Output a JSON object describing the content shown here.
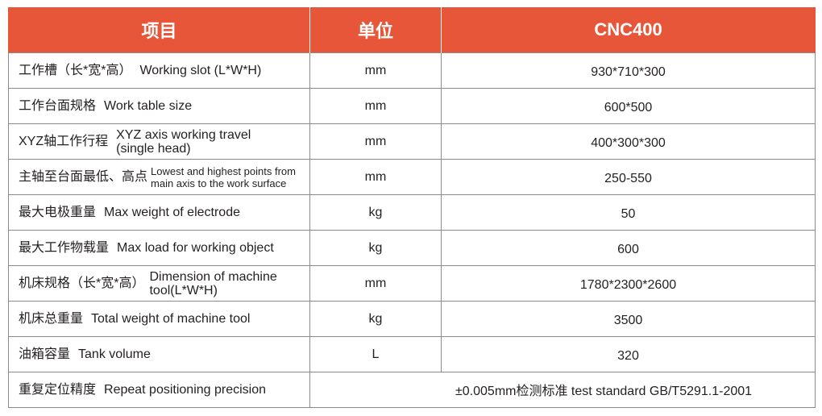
{
  "header": {
    "item": "项目",
    "unit": "单位",
    "model": "CNC400"
  },
  "rows": [
    {
      "cn": "工作槽（长*宽*高）",
      "en": "Working slot (L*W*H)",
      "unit": "mm",
      "value": "930*710*300"
    },
    {
      "cn": "工作台面规格",
      "en": "Work table size",
      "unit": "mm",
      "value": "600*500"
    },
    {
      "cn": "XYZ轴工作行程",
      "en": "XYZ axis working travel (single head)",
      "unit": "mm",
      "value": "400*300*300"
    },
    {
      "cn": "主轴至台面最低、高点",
      "en": "Lowest and highest points from main axis to the work surface",
      "unit": "mm",
      "value": "250-550"
    },
    {
      "cn": "最大电极重量",
      "en": "Max weight of electrode",
      "unit": "kg",
      "value": "50"
    },
    {
      "cn": "最大工作物载量",
      "en": "Max load for working object",
      "unit": "kg",
      "value": "600"
    },
    {
      "cn": "机床规格（长*宽*高）",
      "en": "Dimension of machine tool(L*W*H)",
      "unit": "mm",
      "value": "1780*2300*2600"
    },
    {
      "cn": "机床总重量",
      "en": "Total weight of machine tool",
      "unit": "kg",
      "value": "3500"
    },
    {
      "cn": "油箱容量",
      "en": "Tank volume",
      "unit": "L",
      "value": "320"
    },
    {
      "cn": "重复定位精度",
      "en": "Repeat positioning precision",
      "unit": "",
      "value": "±0.005mm检测标准 test standard GB/T5291.1-2001"
    }
  ]
}
